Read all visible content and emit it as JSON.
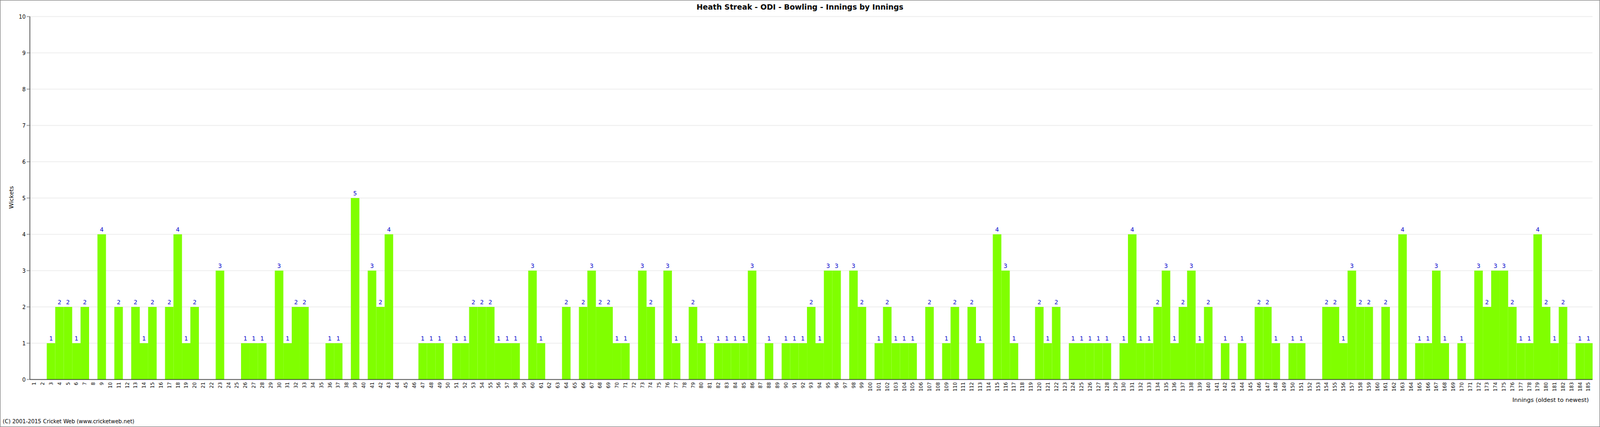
{
  "chart_data": {
    "type": "bar",
    "title": "Heath Streak - ODI - Bowling - Innings by Innings",
    "x_label": "Innings (oldest to newest)",
    "y_label": "Wickets",
    "source": "(C) 2001-2015 Cricket Web (www.cricketweb.net)",
    "categories": [
      1,
      2,
      3,
      4,
      5,
      6,
      7,
      8,
      9,
      10,
      11,
      12,
      13,
      14,
      15,
      16,
      17,
      18,
      19,
      20,
      21,
      22,
      23,
      24,
      25,
      26,
      27,
      28,
      29,
      30,
      31,
      32,
      33,
      34,
      35,
      36,
      37,
      38,
      39,
      40,
      41,
      42,
      43,
      44,
      45,
      46,
      47,
      48,
      49,
      50,
      51,
      52,
      53,
      54,
      55,
      56,
      57,
      58,
      59,
      60,
      61,
      62,
      63,
      64,
      65,
      66,
      67,
      68,
      69,
      70,
      71,
      72,
      73,
      74,
      75,
      76,
      77,
      78,
      79,
      80,
      81,
      82,
      83,
      84,
      85,
      86,
      87,
      88,
      89,
      90,
      91,
      92,
      93,
      94,
      95,
      96,
      97,
      98,
      99,
      100,
      101,
      102,
      103,
      104,
      105,
      106,
      107,
      108,
      109,
      110,
      111,
      112,
      113,
      114,
      115,
      116,
      117,
      118,
      119,
      120,
      121,
      122,
      123,
      124,
      125,
      126,
      127,
      128,
      129,
      130,
      131,
      132,
      133,
      134,
      135,
      136,
      137,
      138,
      139,
      140,
      141,
      142,
      143,
      144,
      145,
      146,
      147,
      148,
      149,
      150,
      151,
      152,
      153,
      154,
      155,
      156,
      157,
      158,
      159,
      160,
      161,
      162,
      163,
      164,
      165,
      166,
      167,
      168,
      169,
      170,
      171,
      172,
      173,
      174,
      175,
      176,
      177,
      178,
      179,
      180,
      181,
      182,
      183,
      184,
      185
    ],
    "values": [
      0,
      0,
      1,
      2,
      2,
      1,
      2,
      0,
      4,
      0,
      2,
      0,
      2,
      1,
      2,
      0,
      2,
      4,
      1,
      2,
      0,
      0,
      3,
      0,
      0,
      1,
      1,
      1,
      0,
      3,
      1,
      2,
      2,
      0,
      0,
      1,
      1,
      0,
      5,
      0,
      3,
      2,
      4,
      0,
      0,
      0,
      1,
      1,
      1,
      0,
      1,
      1,
      2,
      2,
      2,
      1,
      1,
      1,
      0,
      3,
      1,
      0,
      0,
      2,
      0,
      2,
      3,
      2,
      2,
      1,
      1,
      0,
      3,
      2,
      0,
      3,
      1,
      0,
      2,
      1,
      0,
      1,
      1,
      1,
      1,
      3,
      0,
      1,
      0,
      1,
      1,
      1,
      2,
      1,
      3,
      3,
      0,
      3,
      2,
      0,
      1,
      2,
      1,
      1,
      1,
      0,
      2,
      0,
      1,
      2,
      0,
      2,
      1,
      0,
      4,
      3,
      1,
      0,
      0,
      2,
      1,
      2,
      0,
      1,
      1,
      1,
      1,
      1,
      0,
      1,
      4,
      1,
      1,
      2,
      3,
      1,
      2,
      3,
      1,
      2,
      0,
      1,
      0,
      1,
      0,
      2,
      2,
      1,
      0,
      1,
      1,
      0,
      0,
      2,
      2,
      1,
      3,
      2,
      2,
      0,
      2,
      0,
      4,
      0,
      1,
      1,
      3,
      1,
      0,
      1,
      0,
      3,
      2,
      3,
      3,
      2,
      1,
      1,
      4,
      2,
      1,
      2,
      0,
      1,
      1
    ],
    "color": "#80ff00",
    "ylim": [
      0,
      10
    ],
    "yticks": [
      0,
      1,
      2,
      3,
      4,
      5,
      6,
      7,
      8,
      9,
      10
    ],
    "grid": true,
    "data_labels": true
  }
}
